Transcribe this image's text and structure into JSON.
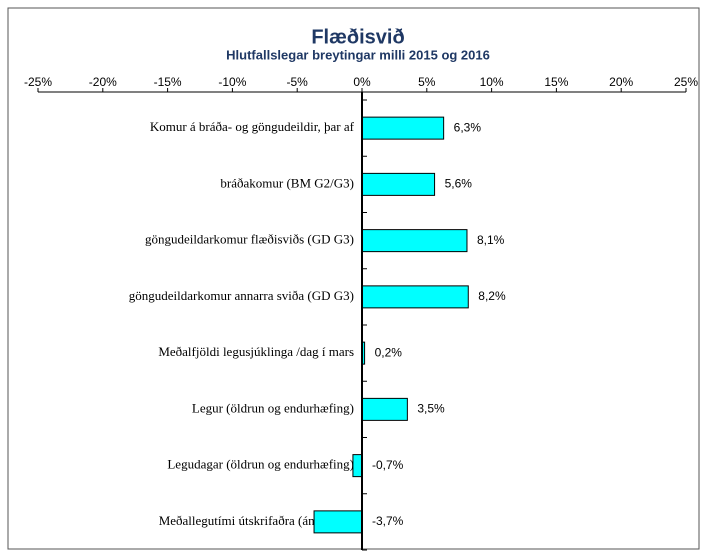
{
  "chart_data": {
    "type": "hbar",
    "title": "Flæðisvið",
    "subtitle": "Hlutfallslegar breytingar milli 2015 og 2016",
    "categories": [
      "Komur á bráða- og göngudeildir, þar af",
      "bráðakomur (BM G2/G3)",
      "göngudeildarkomur flæðisviðs (GD G3)",
      "göngudeildarkomur annarra sviða (GD G3)",
      "Meðalfjöldi legusjúklinga /dag í mars",
      "Legur (öldrun og endurhæfing)",
      "Legudagar (öldrun og endurhæfing)",
      "Meðallegutími útskrifaðra (án útlaga)"
    ],
    "values": [
      6.3,
      5.6,
      8.1,
      8.2,
      0.2,
      3.5,
      -0.7,
      -3.7
    ],
    "value_labels": [
      "6,3%",
      "5,6%",
      "8,1%",
      "8,2%",
      "0,2%",
      "3,5%",
      "-0,7%",
      "-3,7%"
    ],
    "color": "#00ffff",
    "xlim": [
      -25,
      25
    ],
    "xticks": [
      {
        "value": -25,
        "label": "-25%"
      },
      {
        "value": -20,
        "label": "-20%"
      },
      {
        "value": -15,
        "label": "-15%"
      },
      {
        "value": -10,
        "label": "-10%"
      },
      {
        "value": -5,
        "label": "-5%"
      },
      {
        "value": 0,
        "label": "0%"
      },
      {
        "value": 5,
        "label": "5%"
      },
      {
        "value": 10,
        "label": "10%"
      },
      {
        "value": 15,
        "label": "15%"
      },
      {
        "value": 20,
        "label": "20%"
      },
      {
        "value": 25,
        "label": "25%"
      }
    ]
  }
}
